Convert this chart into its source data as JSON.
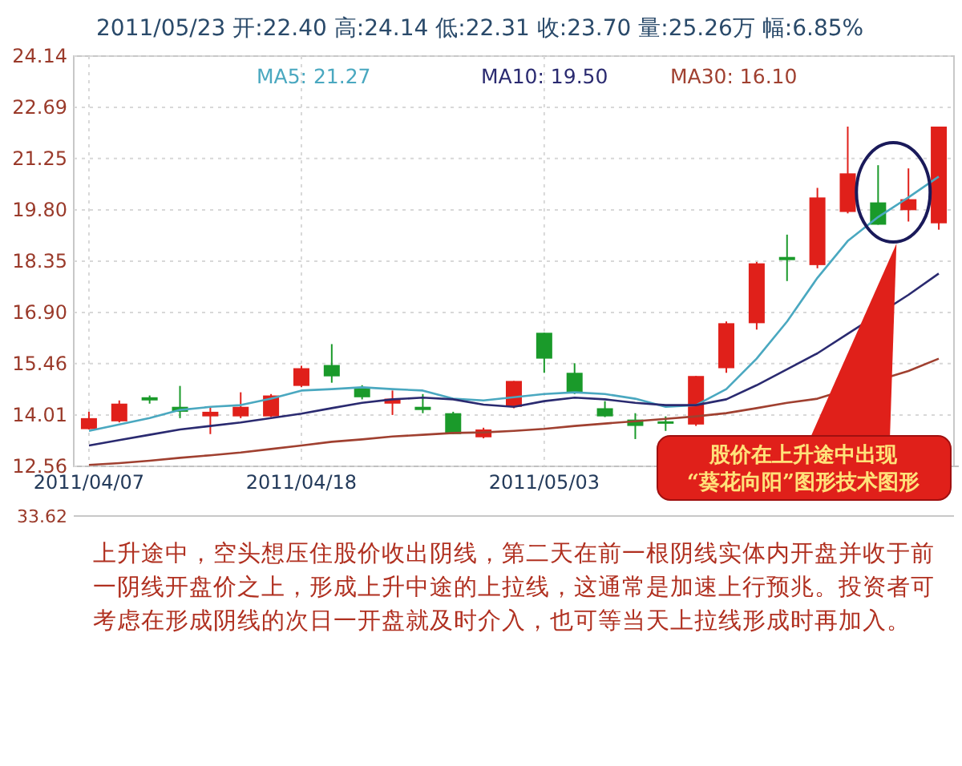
{
  "chart_data": {
    "type": "candlestick",
    "title": "2011/05/23  开:22.40  高:24.14  低:22.31  收:23.70  量:25.26万  幅:6.85%",
    "categories": [
      "2011/04/07",
      null,
      null,
      null,
      null,
      null,
      null,
      "2011/04/18",
      null,
      null,
      null,
      null,
      null,
      null,
      null,
      "2011/05/03",
      null,
      null,
      null,
      null,
      null,
      null,
      null,
      null,
      null,
      null,
      null,
      null,
      null
    ],
    "ohlc": [
      [
        13.61,
        14.1,
        13.6,
        13.92
      ],
      [
        13.83,
        14.42,
        13.8,
        14.33
      ],
      [
        14.51,
        14.56,
        14.33,
        14.42
      ],
      [
        14.24,
        14.83,
        13.92,
        14.1
      ],
      [
        13.97,
        14.24,
        13.47,
        14.1
      ],
      [
        13.97,
        14.65,
        13.92,
        14.24
      ],
      [
        13.97,
        14.6,
        13.95,
        14.56
      ],
      [
        14.83,
        15.4,
        14.8,
        15.33
      ],
      [
        15.42,
        16.01,
        14.92,
        15.1
      ],
      [
        14.79,
        14.85,
        14.45,
        14.51
      ],
      [
        14.33,
        14.7,
        14.01,
        14.47
      ],
      [
        14.24,
        14.6,
        14.06,
        14.15
      ],
      [
        14.06,
        14.1,
        13.47,
        13.47
      ],
      [
        13.38,
        13.65,
        13.35,
        13.6
      ],
      [
        14.24,
        14.97,
        14.2,
        14.97
      ],
      [
        16.33,
        16.33,
        15.2,
        15.6
      ],
      [
        15.2,
        15.47,
        14.6,
        14.65
      ],
      [
        14.2,
        14.4,
        13.95,
        13.97
      ],
      [
        13.88,
        14.06,
        13.33,
        13.7
      ],
      [
        13.83,
        13.97,
        13.56,
        13.79
      ],
      [
        13.74,
        15.11,
        13.7,
        15.11
      ],
      [
        15.33,
        16.65,
        15.2,
        16.6
      ],
      [
        16.6,
        18.33,
        16.42,
        18.29
      ],
      [
        18.47,
        19.1,
        17.79,
        18.38
      ],
      [
        18.24,
        20.42,
        18.15,
        20.15
      ],
      [
        19.74,
        22.15,
        19.7,
        20.83
      ],
      [
        20.01,
        21.06,
        19.38,
        19.38
      ],
      [
        19.79,
        20.97,
        19.47,
        20.1
      ],
      [
        19.42,
        22.15,
        19.24,
        22.15
      ]
    ],
    "colors": [
      "#e0201a",
      "#e0201a",
      "#1a9a2a",
      "#1a9a2a",
      "#e0201a",
      "#e0201a",
      "#e0201a",
      "#e0201a",
      "#1a9a2a",
      "#1a9a2a",
      "#e0201a",
      "#1a9a2a",
      "#1a9a2a",
      "#e0201a",
      "#e0201a",
      "#1a9a2a",
      "#1a9a2a",
      "#1a9a2a",
      "#1a9a2a",
      "#1a9a2a",
      "#e0201a",
      "#e0201a",
      "#e0201a",
      "#1a9a2a",
      "#e0201a",
      "#e0201a",
      "#1a9a2a",
      "#e0201a",
      "#e0201a"
    ],
    "series": [
      {
        "type": "line",
        "name": "MA5: 21.27",
        "color": "#4aa8c0",
        "values": [
          13.56,
          13.74,
          13.92,
          14.15,
          14.24,
          14.29,
          14.47,
          14.7,
          14.74,
          14.79,
          14.74,
          14.7,
          14.47,
          14.42,
          14.51,
          14.6,
          14.65,
          14.6,
          14.47,
          14.24,
          14.29,
          14.74,
          15.6,
          16.65,
          17.88,
          18.92,
          19.6,
          20.15,
          20.74
        ]
      },
      {
        "type": "line",
        "name": "MA10: 19.50",
        "color": "#2a2a70",
        "values": [
          13.15,
          13.3,
          13.45,
          13.6,
          13.7,
          13.8,
          13.92,
          14.05,
          14.2,
          14.35,
          14.45,
          14.5,
          14.45,
          14.3,
          14.24,
          14.4,
          14.5,
          14.45,
          14.35,
          14.29,
          14.29,
          14.45,
          14.85,
          15.3,
          15.75,
          16.3,
          null,
          17.4,
          18.0
        ]
      },
      {
        "type": "line",
        "name": "MA30: 16.10",
        "color": "#a04030",
        "values": [
          12.6,
          12.65,
          12.72,
          12.8,
          12.87,
          12.95,
          13.05,
          13.15,
          13.25,
          13.32,
          13.4,
          13.45,
          13.5,
          13.52,
          13.56,
          13.62,
          13.7,
          13.77,
          13.83,
          13.9,
          13.97,
          14.06,
          14.2,
          14.35,
          14.47,
          null,
          null,
          15.25,
          15.6
        ]
      }
    ],
    "ylim": [
      12.56,
      24.14
    ],
    "yticks": [
      12.56,
      14.01,
      15.46,
      {
        "value": 16.9,
        "label": "16.90"
      },
      18.35,
      {
        "value": 19.8,
        "label": "19.80"
      },
      21.25,
      22.69,
      24.14
    ],
    "grid": true,
    "legend": "top",
    "annotations": [
      "股价在上升途中出现\n“葵花向阳”图形技术图形",
      "33.62",
      "上升途中，空头想压住股价收出阴线，第二天在前一根阴线实体内开盘并收于前一阴线开盘价之上，形成上升中途的上拉线，这通常是加速上行预兆。投资者可考虑在形成阴线的次日一开盘就及时介入，也可等当天上拉线形成时再加入。"
    ]
  }
}
